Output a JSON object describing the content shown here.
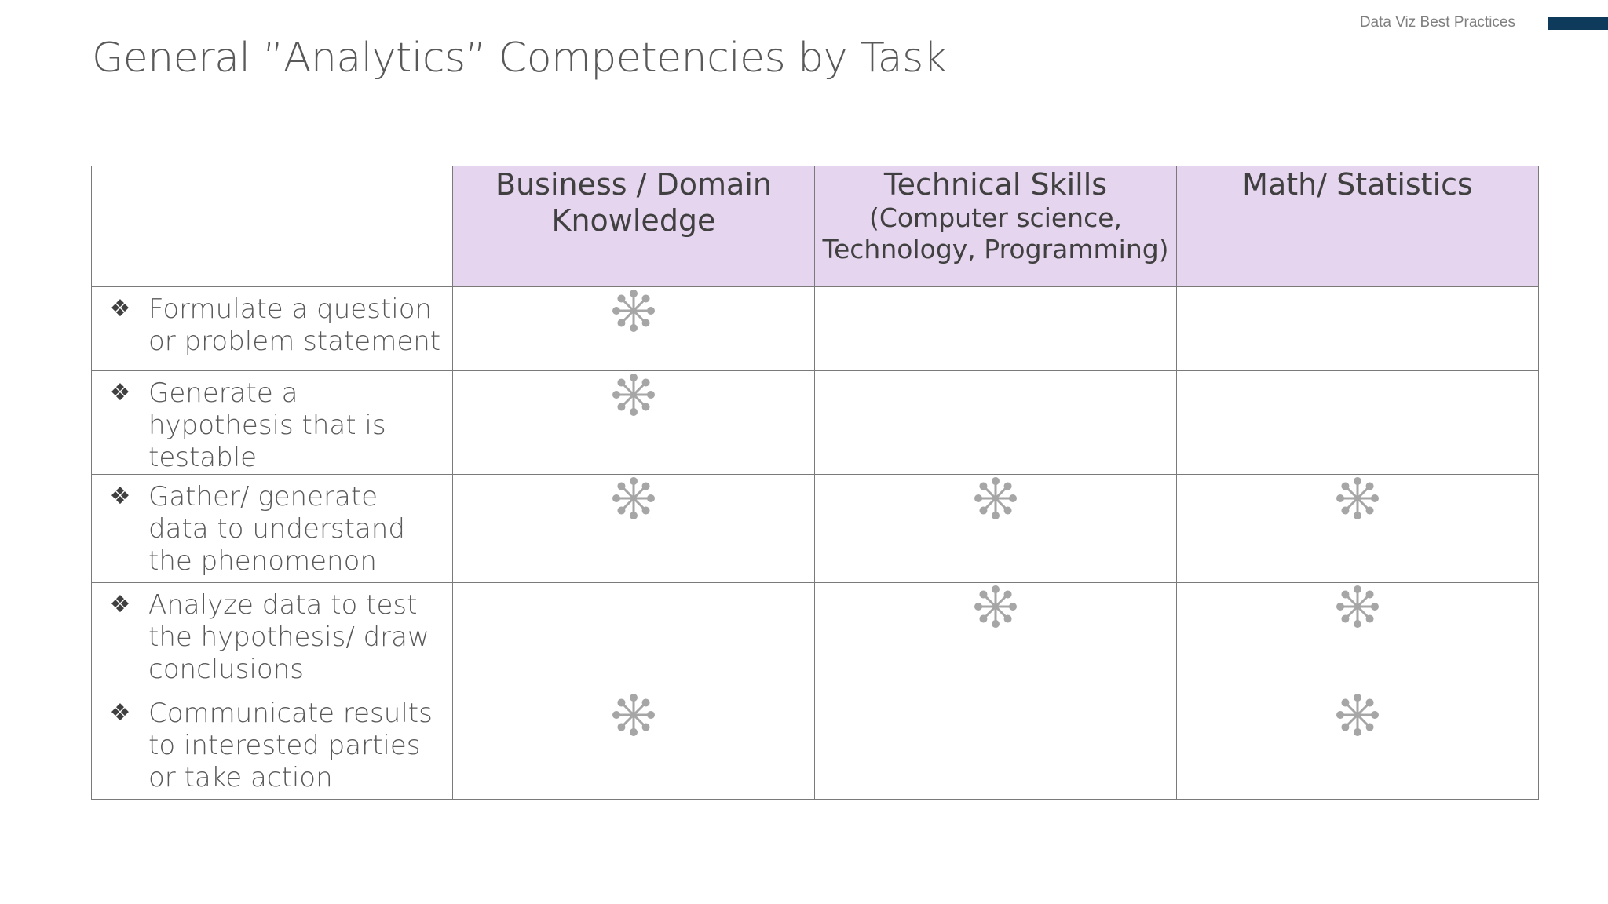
{
  "header": {
    "label": "Data Viz Best Practices",
    "accent_color": "#0e3b5c"
  },
  "title": "General ”Analytics” Competencies by Task",
  "table": {
    "header_color": "#e6d5ee",
    "icon_color": "#a6a6a6",
    "columns": [
      {
        "title": "Business / Domain Knowledge",
        "subtitle": ""
      },
      {
        "title": "Technical Skills",
        "subtitle": "(Computer science, Technology, Programming)"
      },
      {
        "title": "Math/ Statistics",
        "subtitle": ""
      }
    ],
    "bullet_glyph": "❖",
    "mark_icon": "asterisk-network-icon",
    "rows": [
      {
        "task": "Formulate a question or problem statement",
        "marks": [
          true,
          false,
          false
        ]
      },
      {
        "task": "Generate a hypothesis that is testable",
        "marks": [
          true,
          false,
          false
        ]
      },
      {
        "task": "Gather/ generate data to understand the phenomenon",
        "marks": [
          true,
          true,
          true
        ]
      },
      {
        "task": "Analyze data to test the hypothesis/ draw conclusions",
        "marks": [
          false,
          true,
          true
        ]
      },
      {
        "task": "Communicate results to interested parties or take action",
        "marks": [
          true,
          false,
          true
        ]
      }
    ]
  }
}
